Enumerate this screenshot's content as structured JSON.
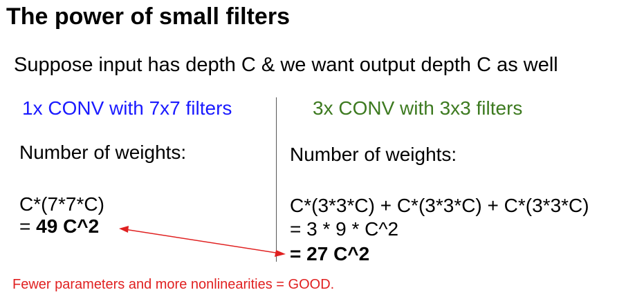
{
  "colors": {
    "left_heading": "#1a1aff",
    "right_heading": "#3d7a20",
    "accent_red": "#e02020",
    "divider": "#555555"
  },
  "slide": {
    "title": "The power of small filters",
    "subtitle": "Suppose input has depth C & we want output depth C as well",
    "left": {
      "heading": "1x CONV with 7x7 filters",
      "weights_label": "Number of weights:",
      "formula": "C*(7*7*C)",
      "result_eq": "= ",
      "result_value": "49 C^2"
    },
    "right": {
      "heading": "3x CONV with 3x3 filters",
      "weights_label": "Number of weights:",
      "formula": "C*(3*3*C) + C*(3*3*C) + C*(3*3*C)",
      "step": "= 3 * 9 * C^2",
      "result_eq": "= ",
      "result_value": "27 C^2"
    },
    "footer": "Fewer parameters and more nonlinearities = GOOD.",
    "arrow_icon": "double-headed-arrow"
  }
}
